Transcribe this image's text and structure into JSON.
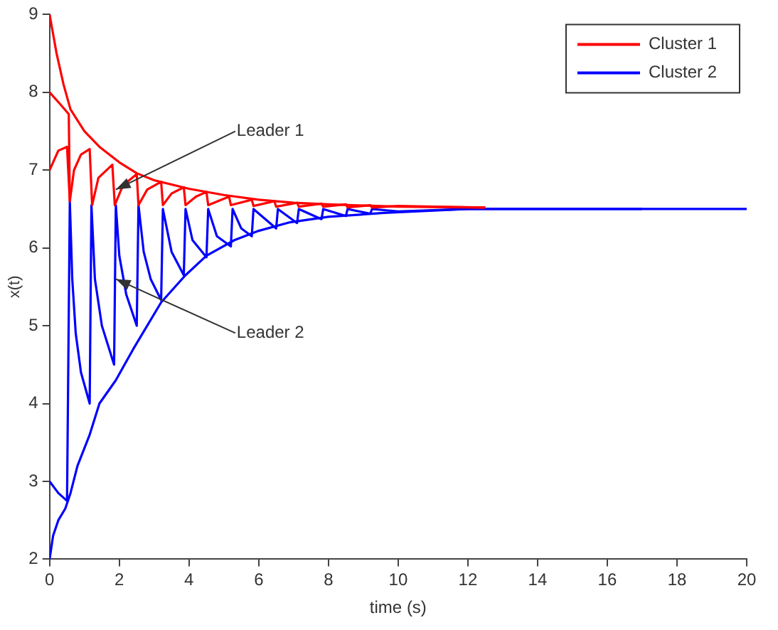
{
  "chart_data": {
    "type": "line",
    "xlabel": "time (s)",
    "ylabel": "x(t)",
    "xlim": [
      0,
      20
    ],
    "xticks": [
      0,
      2,
      4,
      6,
      8,
      10,
      12,
      14,
      16,
      18,
      20
    ],
    "ylim": [
      2,
      9
    ],
    "yticks": [
      2,
      3,
      4,
      5,
      6,
      7,
      8,
      9
    ],
    "grid": false,
    "legend": "top right",
    "marker": "none",
    "line_style": "solid",
    "annotations": [
      {
        "text": "Leader 1",
        "x": 1.9,
        "y": 6.75
      },
      {
        "text": "Leader 2",
        "x": 1.9,
        "y": 5.6
      }
    ],
    "series": [
      {
        "color": "#ff0000",
        "x": [
          0,
          0.2,
          0.4,
          0.6,
          1,
          1.43,
          2,
          2.5,
          3,
          4,
          5,
          6,
          7,
          8,
          10,
          12.5
        ],
        "values": [
          9,
          8.5,
          8.1,
          7.78,
          7.5,
          7.3,
          7.1,
          6.96,
          6.87,
          6.76,
          6.68,
          6.62,
          6.58,
          6.56,
          6.53,
          6.52
        ]
      },
      {
        "color": "#ff0000",
        "x": [
          0,
          0.3,
          0.55,
          0.58
        ],
        "values": [
          8,
          7.85,
          7.72,
          6.6
        ]
      },
      {
        "name": "Cluster 1",
        "color": "#ff0000",
        "x": [
          0,
          0.25,
          0.5,
          0.58,
          0.7,
          0.9,
          1.15,
          1.22,
          1.4,
          1.8,
          1.87,
          2.1,
          2.5,
          2.55,
          2.8,
          3.2,
          3.25,
          3.5,
          3.85,
          3.9,
          4.2,
          4.5,
          4.55,
          5.15,
          5.2,
          5.8,
          5.85,
          6.45,
          6.5,
          7.1,
          7.15,
          7.8,
          7.85,
          8.5,
          8.55,
          9.2,
          9.25,
          10,
          11,
          12.5
        ],
        "values": [
          7,
          7.25,
          7.3,
          6.6,
          7.0,
          7.2,
          7.27,
          6.55,
          6.9,
          7.07,
          6.55,
          6.8,
          6.95,
          6.55,
          6.75,
          6.85,
          6.55,
          6.7,
          6.78,
          6.55,
          6.66,
          6.72,
          6.55,
          6.66,
          6.55,
          6.62,
          6.54,
          6.6,
          6.53,
          6.58,
          6.53,
          6.57,
          6.53,
          6.56,
          6.52,
          6.55,
          6.52,
          6.54,
          6.53,
          6.52
        ]
      },
      {
        "name": "Cluster 2",
        "color": "#0000ff",
        "x": [
          0,
          0.25,
          0.5,
          0.58,
          0.65,
          0.75,
          0.9,
          1.15,
          1.2,
          1.3,
          1.5,
          1.85,
          1.9,
          2.0,
          2.2,
          2.5,
          2.55,
          2.7,
          2.9,
          3.2,
          3.25,
          3.5,
          3.85,
          3.9,
          4.1,
          4.5,
          4.55,
          4.8,
          5.2,
          5.25,
          5.5,
          5.8,
          5.85,
          6.5,
          6.55,
          7.1,
          7.15,
          7.8,
          7.85,
          8.5,
          8.55,
          9.2,
          9.25,
          10,
          12,
          20
        ],
        "values": [
          3,
          2.85,
          2.75,
          6.6,
          5.6,
          4.9,
          4.4,
          4.0,
          6.55,
          5.6,
          5.0,
          4.5,
          6.55,
          5.9,
          5.4,
          5.0,
          6.55,
          5.95,
          5.6,
          5.33,
          6.5,
          5.95,
          5.65,
          6.5,
          6.1,
          5.88,
          6.5,
          6.15,
          6.02,
          6.5,
          6.25,
          6.15,
          6.5,
          6.25,
          6.5,
          6.32,
          6.5,
          6.37,
          6.5,
          6.41,
          6.5,
          6.44,
          6.5,
          6.47,
          6.5,
          6.5
        ]
      },
      {
        "color": "#0000ff",
        "x": [
          0,
          0.1,
          0.25,
          0.45,
          0.6,
          0.8,
          1.15,
          1.43,
          1.9,
          2.4,
          3.2,
          3.9,
          4.5,
          5.3,
          6,
          6.9,
          8,
          9.6,
          12,
          17
        ],
        "values": [
          2,
          2.3,
          2.5,
          2.65,
          2.85,
          3.2,
          3.6,
          4.0,
          4.3,
          4.7,
          5.3,
          5.65,
          5.9,
          6.1,
          6.22,
          6.33,
          6.4,
          6.45,
          6.5,
          6.5
        ]
      }
    ]
  }
}
